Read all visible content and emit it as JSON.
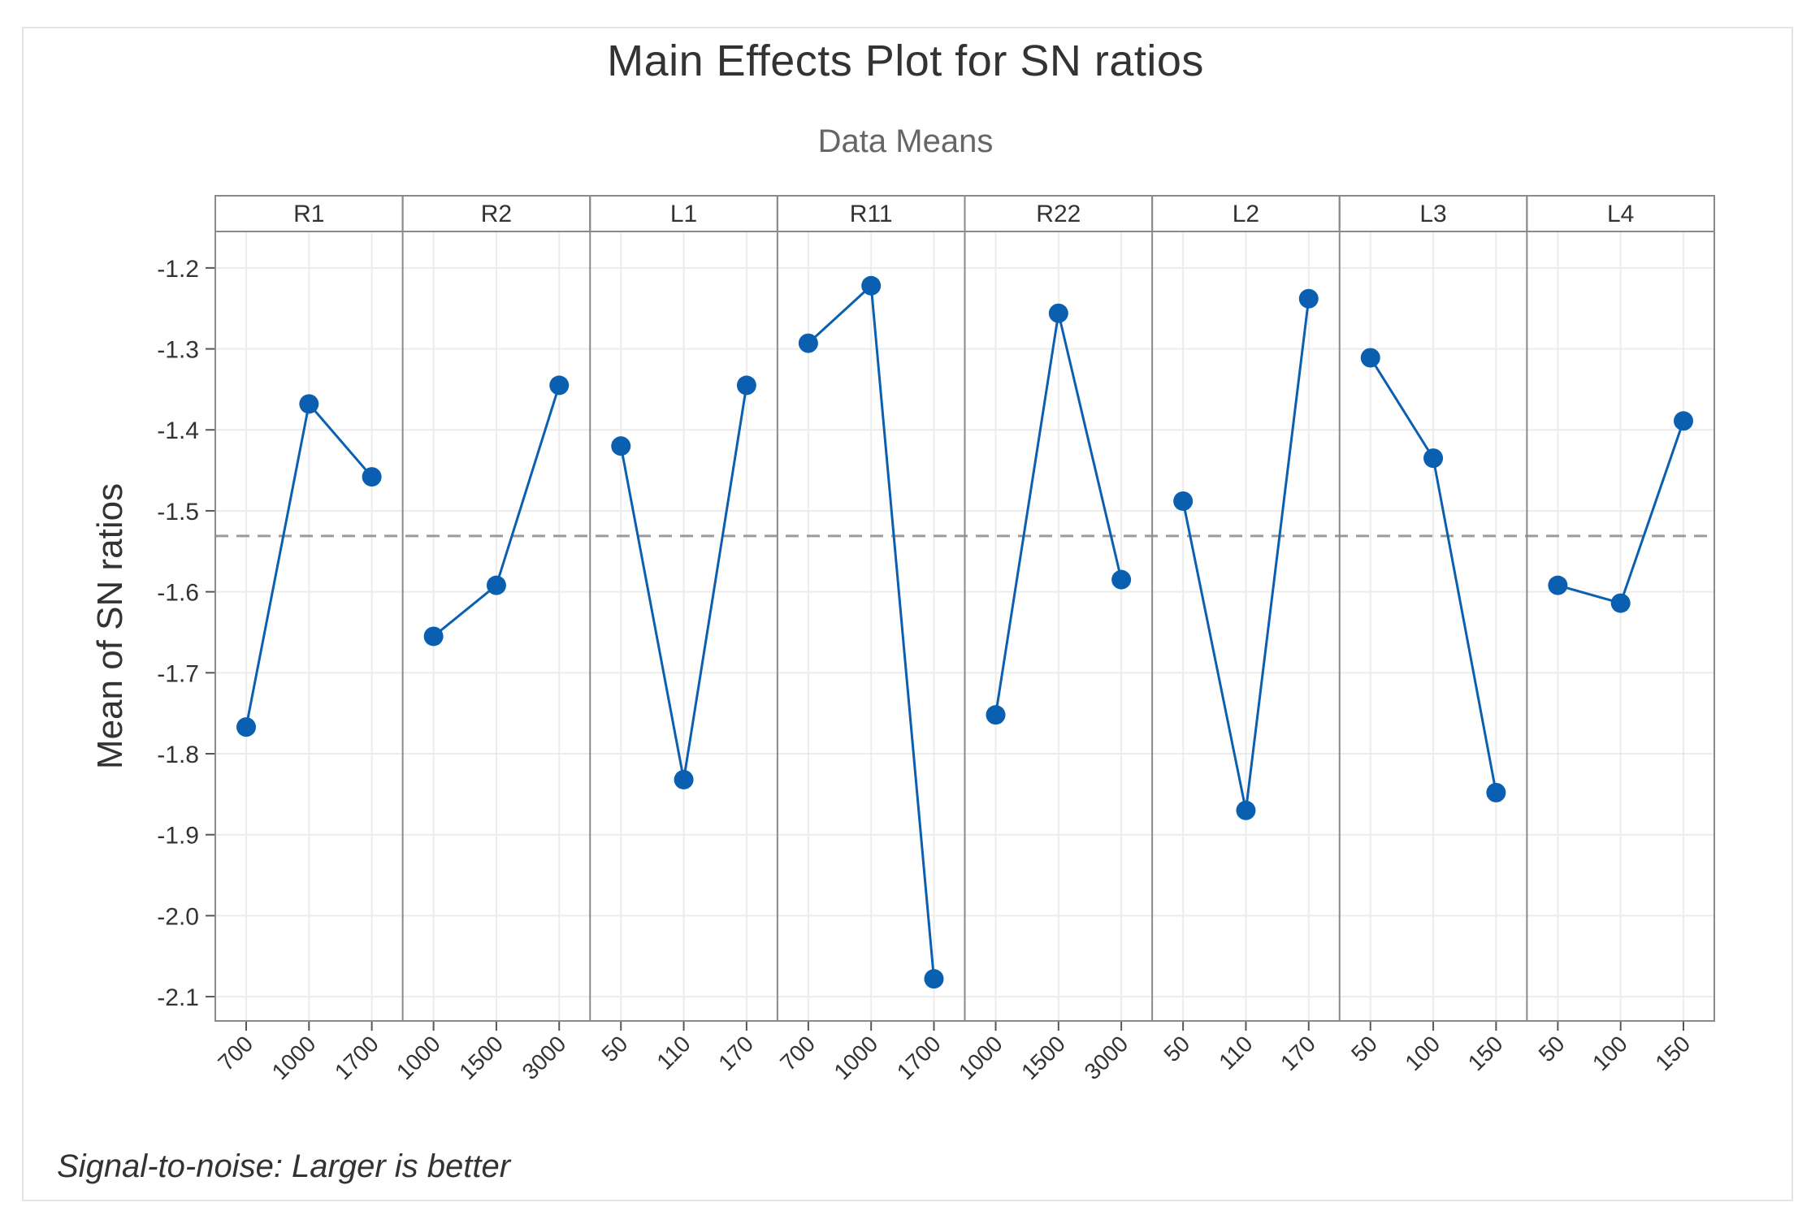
{
  "title": "Main Effects Plot for SN ratios",
  "subtitle": "Data Means",
  "footnote": "Signal-to-noise: Larger is better",
  "chart_data": {
    "type": "line",
    "title": "Main Effects Plot for SN ratios",
    "subtitle": "Data Means",
    "ylabel": "Mean of SN ratios",
    "xlabel": "",
    "ylim": [
      -2.13,
      -1.155
    ],
    "yticks": [
      -1.2,
      -1.3,
      -1.4,
      -1.5,
      -1.6,
      -1.7,
      -1.8,
      -1.9,
      -2.0,
      -2.1
    ],
    "ytick_labels": [
      "-1.2",
      "-1.3",
      "-1.4",
      "-1.5",
      "-1.6",
      "-1.7",
      "-1.8",
      "-1.9",
      "-2.0",
      "-2.1"
    ],
    "reference_line": -1.531,
    "grid": true,
    "line_color": "#0a5fb0",
    "panels": [
      {
        "name": "R1",
        "levels": [
          "700",
          "1000",
          "1700"
        ],
        "values": [
          -1.767,
          -1.368,
          -1.458
        ]
      },
      {
        "name": "R2",
        "levels": [
          "1000",
          "1500",
          "3000"
        ],
        "values": [
          -1.655,
          -1.592,
          -1.345
        ]
      },
      {
        "name": "L1",
        "levels": [
          "50",
          "110",
          "170"
        ],
        "values": [
          -1.42,
          -1.832,
          -1.345
        ]
      },
      {
        "name": "R11",
        "levels": [
          "700",
          "1000",
          "1700"
        ],
        "values": [
          -1.293,
          -1.222,
          -2.078
        ]
      },
      {
        "name": "R22",
        "levels": [
          "1000",
          "1500",
          "3000"
        ],
        "values": [
          -1.752,
          -1.256,
          -1.585
        ]
      },
      {
        "name": "L2",
        "levels": [
          "50",
          "110",
          "170"
        ],
        "values": [
          -1.488,
          -1.87,
          -1.238
        ]
      },
      {
        "name": "L3",
        "levels": [
          "50",
          "100",
          "150"
        ],
        "values": [
          -1.311,
          -1.435,
          -1.848
        ]
      },
      {
        "name": "L4",
        "levels": [
          "50",
          "100",
          "150"
        ],
        "values": [
          -1.592,
          -1.614,
          -1.389
        ]
      }
    ]
  }
}
